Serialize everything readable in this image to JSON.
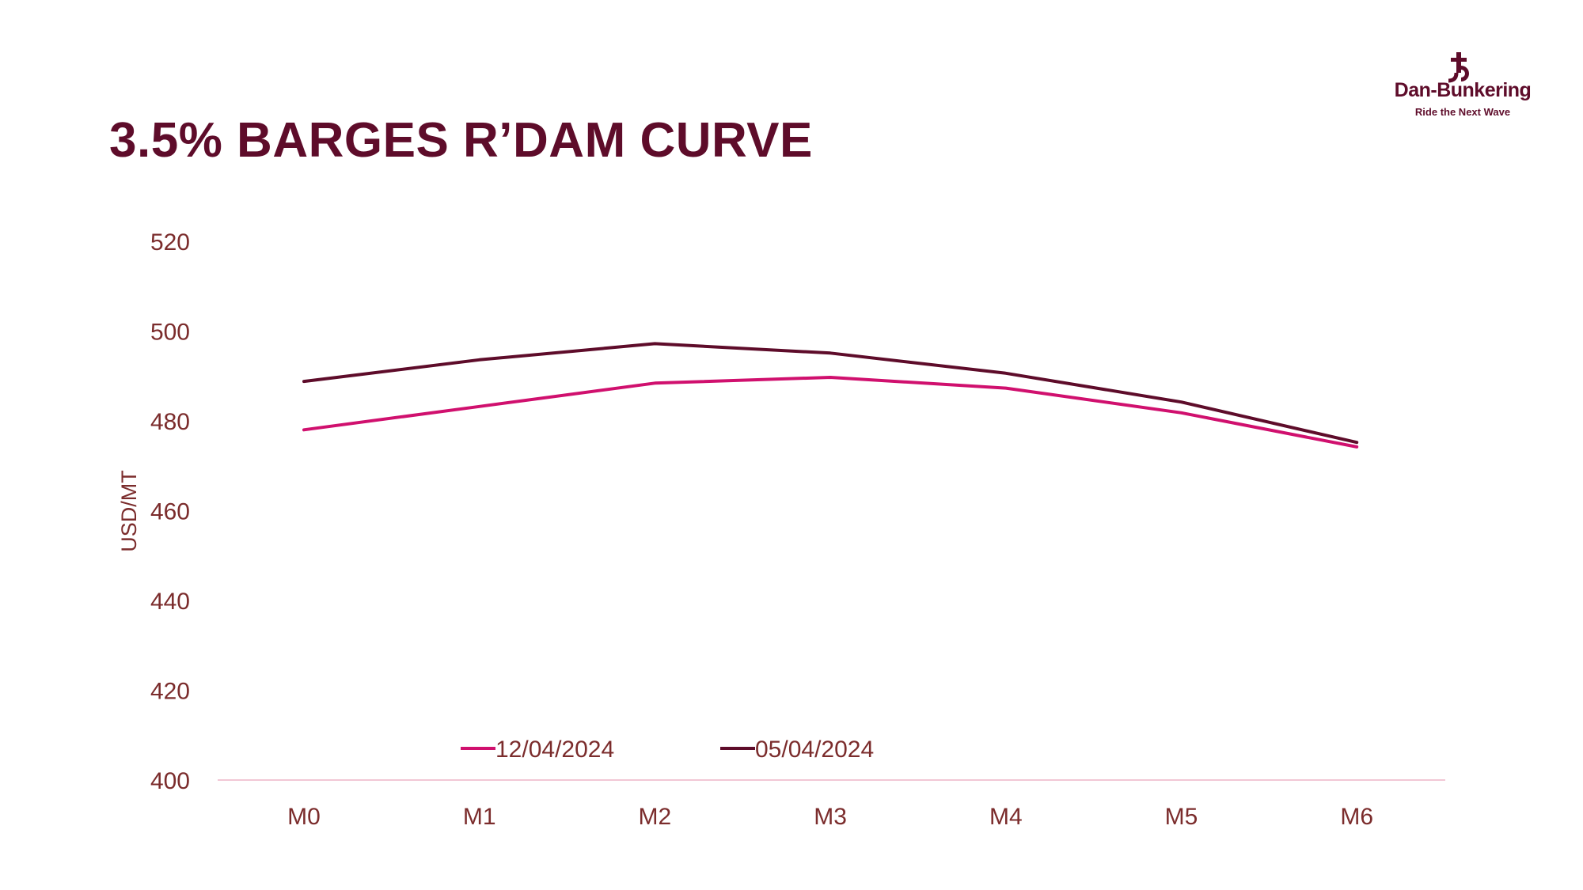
{
  "page": {
    "title": "3.5% BARGES R’DAM CURVE"
  },
  "logo": {
    "name": "Dan-Bunkering",
    "tagline": "Ride the Next Wave",
    "color": "#5e0c2a"
  },
  "chart_data": {
    "type": "line",
    "title": "3.5% BARGES R’DAM CURVE",
    "xlabel": "",
    "ylabel": "USD/MT",
    "ylim": [
      400,
      520
    ],
    "yticks": [
      400,
      420,
      440,
      460,
      480,
      500,
      520
    ],
    "categories": [
      "M0",
      "M1",
      "M2",
      "M3",
      "M4",
      "M5",
      "M6"
    ],
    "grid": false,
    "legend_position": "bottom",
    "series": [
      {
        "name": "12/04/2024",
        "color": "#d0106e",
        "values": [
          478.0,
          483.2,
          488.4,
          489.7,
          487.3,
          481.8,
          474.2
        ]
      },
      {
        "name": "05/04/2024",
        "color": "#5e0c2a",
        "values": [
          488.8,
          493.6,
          497.2,
          495.1,
          490.6,
          484.2,
          475.2
        ]
      }
    ]
  }
}
